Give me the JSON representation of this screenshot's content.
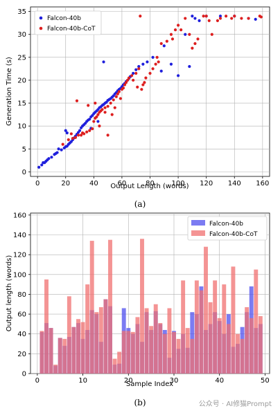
{
  "chart_data": [
    {
      "type": "scatter",
      "caption": "(a)",
      "xlabel": "Output Length (words)",
      "ylabel": "Generation Time (s)",
      "xlim": [
        -5,
        165
      ],
      "ylim": [
        -1,
        36
      ],
      "xticks": [
        0,
        20,
        40,
        60,
        80,
        100,
        120,
        140,
        160
      ],
      "yticks": [
        0,
        5,
        10,
        15,
        20,
        25,
        30,
        35
      ],
      "grid": true,
      "legend_position": "top-left",
      "series": [
        {
          "name": "Falcon-40b",
          "color": "#1f1fdc",
          "points": [
            [
              1,
              1
            ],
            [
              3,
              1.5
            ],
            [
              4,
              2
            ],
            [
              5,
              2
            ],
            [
              6,
              2.3
            ],
            [
              7,
              2.6
            ],
            [
              8,
              2.9
            ],
            [
              10,
              3.2
            ],
            [
              12,
              3.8
            ],
            [
              13,
              4
            ],
            [
              14,
              4.2
            ],
            [
              17,
              4.8
            ],
            [
              19,
              5.2
            ],
            [
              20,
              5.5
            ],
            [
              21,
              5.6
            ],
            [
              22,
              6
            ],
            [
              23,
              6.3
            ],
            [
              24,
              6.6
            ],
            [
              25,
              7
            ],
            [
              26,
              7.4
            ],
            [
              27,
              7.8
            ],
            [
              28,
              8.2
            ],
            [
              29,
              8.6
            ],
            [
              30,
              9
            ],
            [
              31,
              9.6
            ],
            [
              32,
              10
            ],
            [
              33,
              10.3
            ],
            [
              34,
              10.6
            ],
            [
              35,
              11
            ],
            [
              36,
              11.3
            ],
            [
              37,
              11.5
            ],
            [
              38,
              12
            ],
            [
              39,
              12.3
            ],
            [
              40,
              12.7
            ],
            [
              41,
              13
            ],
            [
              42,
              13.3
            ],
            [
              43,
              13.6
            ],
            [
              44,
              14
            ],
            [
              45,
              14.2
            ],
            [
              46,
              14.5
            ],
            [
              47,
              14.7
            ],
            [
              48,
              15
            ],
            [
              49,
              15.2
            ],
            [
              50,
              15.6
            ],
            [
              51,
              15.8
            ],
            [
              52,
              16
            ],
            [
              53,
              16.3
            ],
            [
              54,
              16.6
            ],
            [
              55,
              17
            ],
            [
              56,
              17.3
            ],
            [
              57,
              17.7
            ],
            [
              58,
              18
            ],
            [
              59,
              18.2
            ],
            [
              60,
              18.6
            ],
            [
              61,
              19
            ],
            [
              62,
              19.3
            ],
            [
              63,
              19.7
            ],
            [
              64,
              20
            ],
            [
              65,
              20.4
            ],
            [
              66,
              20.8
            ],
            [
              68,
              21.5
            ],
            [
              70,
              22.3
            ],
            [
              72,
              23
            ],
            [
              75,
              23.5
            ],
            [
              78,
              24
            ],
            [
              82,
              25
            ],
            [
              88,
              22
            ],
            [
              90,
              27.5
            ],
            [
              95,
              23.5
            ],
            [
              100,
              21
            ],
            [
              105,
              30
            ],
            [
              108,
              23
            ],
            [
              110,
              34
            ],
            [
              112,
              33.5
            ],
            [
              115,
              33
            ],
            [
              120,
              34
            ],
            [
              130,
              34
            ],
            [
              140,
              34
            ],
            [
              150,
              33.5
            ],
            [
              155,
              33.3
            ],
            [
              47,
              24
            ],
            [
              20,
              9
            ],
            [
              21,
              8.5
            ],
            [
              15,
              5
            ],
            [
              43,
              11
            ],
            [
              38,
              9.5
            ]
          ]
        },
        {
          "name": "Falcon-40b-CoT",
          "color": "#dd1f1f",
          "points": [
            [
              18,
              6
            ],
            [
              22,
              7
            ],
            [
              25,
              7.3
            ],
            [
              27,
              7.5
            ],
            [
              29,
              8
            ],
            [
              31,
              8
            ],
            [
              33,
              8.3
            ],
            [
              35,
              8.7
            ],
            [
              37,
              9
            ],
            [
              39,
              9.4
            ],
            [
              40,
              11
            ],
            [
              41,
              11.7
            ],
            [
              42,
              12
            ],
            [
              43,
              12.5
            ],
            [
              44,
              13
            ],
            [
              45,
              13.3
            ],
            [
              46,
              13.6
            ],
            [
              48,
              14
            ],
            [
              50,
              14.3
            ],
            [
              52,
              15
            ],
            [
              54,
              15.7
            ],
            [
              56,
              16.4
            ],
            [
              57,
              17
            ],
            [
              58,
              17.5
            ],
            [
              60,
              18
            ],
            [
              61,
              18.3
            ],
            [
              62,
              19
            ],
            [
              63,
              19.5
            ],
            [
              64,
              20
            ],
            [
              65,
              20.5
            ],
            [
              67,
              21
            ],
            [
              70,
              21.5
            ],
            [
              72,
              22.5
            ],
            [
              74,
              18
            ],
            [
              75,
              19
            ],
            [
              76,
              19.5
            ],
            [
              77,
              20.5
            ],
            [
              80,
              21.5
            ],
            [
              82,
              22.5
            ],
            [
              84,
              23.5
            ],
            [
              85,
              25
            ],
            [
              86,
              24
            ],
            [
              88,
              28
            ],
            [
              92,
              28.5
            ],
            [
              95,
              30
            ],
            [
              98,
              31
            ],
            [
              100,
              32
            ],
            [
              102,
              31
            ],
            [
              105,
              33.5
            ],
            [
              108,
              30
            ],
            [
              110,
              27
            ],
            [
              112,
              28
            ],
            [
              114,
              29
            ],
            [
              118,
              34
            ],
            [
              120,
              34
            ],
            [
              124,
              30
            ],
            [
              128,
              33
            ],
            [
              130,
              33.5
            ],
            [
              134,
              34
            ],
            [
              138,
              33.5
            ],
            [
              140,
              34
            ],
            [
              145,
              33.5
            ],
            [
              150,
              33.5
            ],
            [
              158,
              34
            ],
            [
              159,
              33.8
            ],
            [
              28,
              15.5
            ],
            [
              41,
              15
            ],
            [
              48,
              13
            ],
            [
              53,
              12.5
            ],
            [
              55,
              14
            ],
            [
              44,
              10
            ],
            [
              36,
              14.5
            ],
            [
              32,
              8.5
            ],
            [
              59,
              16
            ],
            [
              73,
              34
            ],
            [
              96,
              29
            ],
            [
              68,
              20
            ],
            [
              122,
              33
            ],
            [
              71,
              18.5
            ],
            [
              50,
              8
            ],
            [
              24,
              8.3
            ]
          ]
        }
      ]
    },
    {
      "type": "bar",
      "caption": "(b)",
      "xlabel": "Sample Index",
      "ylabel": "Output length (words)",
      "xlim": [
        -1.5,
        51
      ],
      "ylim": [
        0,
        162
      ],
      "xticks": [
        0,
        10,
        20,
        30,
        40,
        50
      ],
      "yticks": [
        0,
        20,
        40,
        60,
        80,
        100,
        120,
        140,
        160
      ],
      "grid": true,
      "legend_position": "top-right",
      "categories": [
        0,
        1,
        2,
        3,
        4,
        5,
        6,
        7,
        8,
        9,
        10,
        11,
        12,
        13,
        14,
        15,
        16,
        17,
        18,
        19,
        20,
        21,
        22,
        23,
        24,
        25,
        26,
        27,
        28,
        29,
        30,
        31,
        32,
        33,
        34,
        35,
        36,
        37,
        38,
        39,
        40,
        41,
        42,
        43,
        44,
        45,
        46,
        47,
        48,
        49,
        50
      ],
      "series": [
        {
          "name": "Falcon-40b",
          "color": "#4f4fee",
          "values": [
            0,
            42,
            51,
            46,
            8,
            36,
            28,
            37,
            47,
            51,
            35,
            44,
            64,
            60,
            32,
            75,
            68,
            9,
            10,
            66,
            46,
            40,
            50,
            32,
            62,
            44,
            63,
            50,
            44,
            16,
            43,
            25,
            40,
            26,
            62,
            60,
            88,
            44,
            50,
            62,
            53,
            40,
            60,
            27,
            30,
            47,
            62,
            88,
            46,
            50,
            0
          ]
        },
        {
          "name": "Falcon-40b-CoT",
          "color": "#f07070",
          "values": [
            0,
            43,
            95,
            46,
            9,
            36,
            35,
            78,
            47,
            55,
            52,
            90,
            134,
            62,
            67,
            75,
            135,
            15,
            22,
            43,
            43,
            42,
            57,
            136,
            66,
            48,
            70,
            51,
            40,
            66,
            42,
            35,
            94,
            46,
            35,
            94,
            84,
            128,
            72,
            94,
            56,
            90,
            50,
            108,
            40,
            35,
            67,
            56,
            105,
            58,
            0
          ]
        }
      ]
    }
  ],
  "watermark": "公众号 · AI修猫Prompt"
}
